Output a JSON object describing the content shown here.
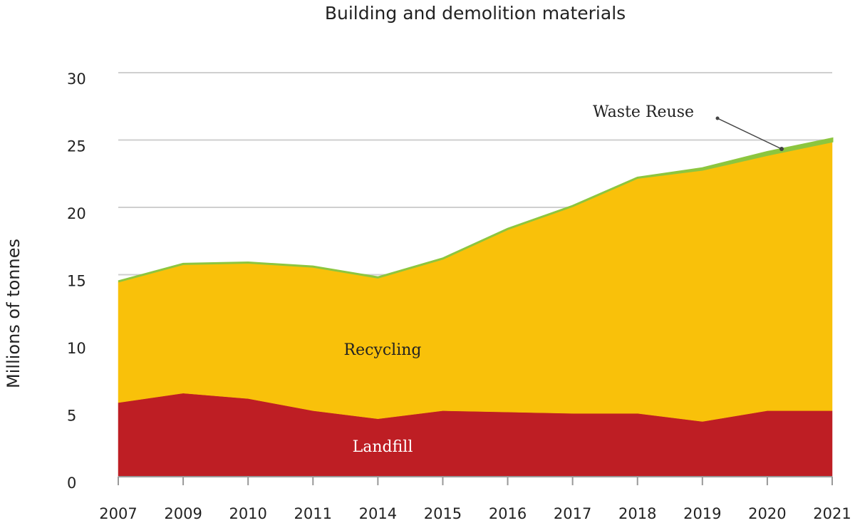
{
  "chart_data": {
    "type": "stacked-area",
    "title": "Building and demolition materials",
    "y_label": "Millions of tonnes",
    "categories": [
      "2007",
      "2009",
      "2010",
      "2011",
      "2014",
      "2015",
      "2016",
      "2017",
      "2018",
      "2019",
      "2020",
      "2021"
    ],
    "series": [
      {
        "name": "Landfill",
        "color": "#be1e24",
        "values": [
          5.5,
          6.2,
          5.8,
          4.9,
          4.3,
          4.9,
          4.8,
          4.7,
          4.7,
          4.1,
          4.9,
          4.9
        ]
      },
      {
        "name": "Recycling",
        "color": "#f9c10a",
        "values": [
          9.0,
          9.6,
          10.1,
          10.7,
          10.5,
          11.3,
          13.6,
          15.4,
          17.5,
          18.7,
          19.0,
          20.0
        ]
      },
      {
        "name": "Waste Reuse",
        "color": "#8cc63f",
        "values": [
          0,
          0,
          0,
          0,
          0,
          0,
          0,
          0,
          0,
          0.1,
          0.2,
          0.2
        ]
      }
    ],
    "ylim": [
      0,
      30
    ],
    "yticks": [
      0,
      5,
      10,
      15,
      20,
      25,
      30
    ],
    "grid": true
  }
}
